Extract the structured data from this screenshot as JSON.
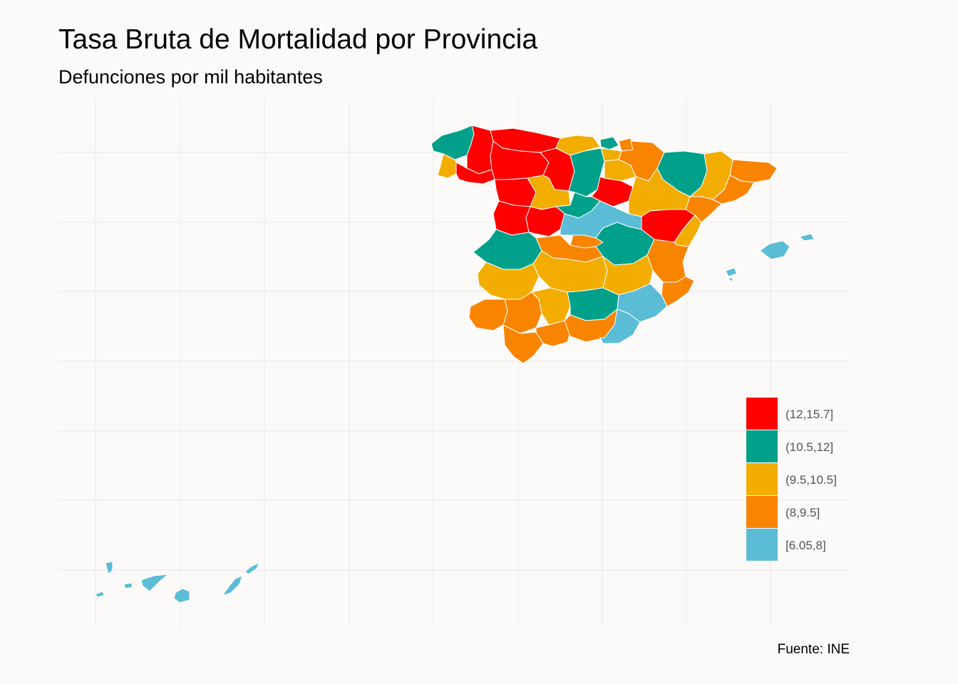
{
  "title": "Tasa Bruta de Mortalidad por Provincia",
  "subtitle": "Defunciones por mil habitantes",
  "caption": "Fuente: INE",
  "legend": {
    "position": "bottom-right",
    "items": [
      {
        "label": "(12,15.7]",
        "color": "#ff0000"
      },
      {
        "label": "(10.5,12]",
        "color": "#00a08a"
      },
      {
        "label": "(9.5,10.5]",
        "color": "#f2ad00"
      },
      {
        "label": "(8,9.5]",
        "color": "#f98400"
      },
      {
        "label": "[6.05,8]",
        "color": "#5bbcd6"
      }
    ]
  },
  "colors": {
    "background": "#fcfaf8",
    "grid": "#ebebeb",
    "province_border": "#ffffff"
  },
  "map": {
    "region": "Spain",
    "show_grid": true
  }
}
